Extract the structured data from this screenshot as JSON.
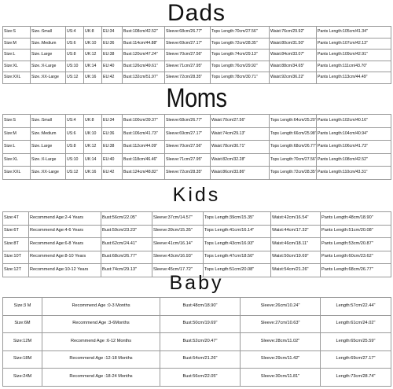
{
  "dads": {
    "title": "Dads",
    "rows": [
      [
        "Size:S",
        "Size.:Small",
        "US:4",
        "UK:8",
        "EU:34",
        "Bust:108cm/42.52\"",
        "Sleeve:68cm/26.77\"",
        "Tops Length:70cm/27.56\"",
        "Waist:76cm/29.92\"",
        "Pants Length:105cm/41.34\""
      ],
      [
        "Size:M",
        "Size.:Medium",
        "US:6",
        "UK:10",
        "EU:36",
        "Bust:114cm/44.88\"",
        "Sleeve:69cm/27.17\"",
        "Tops Length:72cm/28.35\"",
        "Waist:80cm/31.50\"",
        "Pants Length:107cm/42.13\""
      ],
      [
        "Size:L",
        "Size.:Large",
        "US:8",
        "UK:12",
        "EU:38",
        "Bust:120cm/47.24\"",
        "Sleeve:70cm/27.56\"",
        "Tops Length:74cm/29.13\"",
        "Waist:84cm/33.07\"",
        "Pants Length:109cm/42.91\""
      ],
      [
        "Size:XL",
        "Size.:X-Large",
        "US:10",
        "UK:14",
        "EU:40",
        "Bust:126cm/49.61\"",
        "Sleeve:71cm/27.95\"",
        "Tops Length:76cm/29.92\"",
        "Waist:88cm/34.65\"",
        "Pants Length:111cm/43.70\""
      ],
      [
        "Size:XXL",
        "Size.:XX-Large",
        "US:12",
        "UK:16",
        "EU:42",
        "Bust:132cm/51.97\"",
        "Sleeve:72cm/28.35\"",
        "Tops Length:78cm/30.71\"",
        "Waist:92cm/36.22\"",
        "Pants Length:113cm/44.49\""
      ]
    ]
  },
  "moms": {
    "title": "Moms",
    "rows": [
      [
        "Size:S",
        "Size.:Small",
        "US:4",
        "UK:8",
        "EU:34",
        "Bust:100cm/39.37\"",
        "Sleeve:68cm/26.77\"",
        "Waist:70cm/27.56\"",
        "Tops Length:64cm/25.20\"",
        "Pants Length:102cm/40.16\""
      ],
      [
        "Size:M",
        "Size.:Medium",
        "US:6",
        "UK:10",
        "EU:36",
        "Bust:106cm/41.73\"",
        "Sleeve:69cm/27.17\"",
        "Waist:74cm/29.13\"",
        "Tops Length:66cm/25.98\"",
        "Pants Length:104cm/40.94\""
      ],
      [
        "Size:L",
        "Size.:Large",
        "US:8",
        "UK:12",
        "EU:38",
        "Bust:112cm/44.09\"",
        "Sleeve:70cm/27.56\"",
        "Waist:78cm/30.71\"",
        "Tops Length:68cm/26.77\"",
        "Pants Length:106cm/41.73\""
      ],
      [
        "Size:XL",
        "Size.:X-Large",
        "US:10",
        "UK:14",
        "EU:40",
        "Bust:118cm/46.46\"",
        "Sleeve:71cm/27.95\"",
        "Waist:82cm/32.28\"",
        "Tops Length:70cm/27.56\"",
        "Pants Length:108cm/42.52\""
      ],
      [
        "Size:XXL",
        "Size.:XX-Large",
        "US:12",
        "UK:16",
        "EU:42",
        "Bust:124cm/48.82\"",
        "Sleeve:72cm/28.35\"",
        "Waist:86cm/33.86\"",
        "Tops Length:72cm/28.35\"",
        "Pants Length:110cm/43.31\""
      ]
    ]
  },
  "kids": {
    "title": "Kids",
    "rows": [
      [
        "Size:4T",
        "Recommend Age:2-4 Years",
        "Bust:56cm/22.05\"",
        "Sleeve:37cm/14.57\"",
        "Tops Length:39cm/15.35\"",
        "Waist:42cm/16.54\"",
        "Pants Length:48cm/18.90\""
      ],
      [
        "Size:6T",
        "Recommend Age:4-6 Years",
        "Bust:59cm/23.23\"",
        "Sleeve:39cm/15.35\"",
        "Tops Length:41cm/16.14\"",
        "Waist:44cm/17.32\"",
        "Pants Length:51cm/20.08\""
      ],
      [
        "Size:8T",
        "Recommend Age:6-8 Years",
        "Bust:62cm/24.41\"",
        "Sleeve:41cm/16.14\"",
        "Tops Length:43cm/16.93\"",
        "Waist:46cm/18.11\"",
        "Pants Length:53cm/20.87\""
      ],
      [
        "Size:10T",
        "Recommend Age:8-10 Years",
        "Bust:68cm/26.77\"",
        "Sleeve:43cm/16.93\"",
        "Tops Length:47cm/18.50\"",
        "Waist:50cm/19.69\"",
        "Pants Length:60cm/23.62\""
      ],
      [
        "Size:12T",
        "Recommend Age:10-12 Years",
        "Bust:74cm/29.13\"",
        "Sleeve:45cm/17.72\"",
        "Tops Length:51cm/20.08\"",
        "Waist:54cm/21.26\"",
        "Pants Length:68cm/26.77\""
      ]
    ]
  },
  "baby": {
    "title": "Baby",
    "rows": [
      [
        "Size:3 M",
        "Recommend Age :0-3 Months",
        "Bust:48cm/18.90\"",
        "Sleeve:26cm/10.24\"",
        "Length:57cm/22.44\""
      ],
      [
        "Size:6M",
        "Recommend Age :3-6Months",
        "Bust:50cm/19.69\"",
        "Sleeve:27cm/10.63\"",
        "Length:61cm/24.02\""
      ],
      [
        "Size:12M",
        "Recommend Age :6-12 Months",
        "Bust:52cm/20.47\"",
        "Sleeve:28cm/11.02\"",
        "Length:65cm/25.59\""
      ],
      [
        "Size:18M",
        "Recommend Age :12-18 Months",
        "Bust:54cm/21.26\"",
        "Sleeve:29cm/11.42\"",
        "Length:69cm/27.17\""
      ],
      [
        "Size:24M",
        "Recommend Age :18-24 Months",
        "Bust:56cm/22.05\"",
        "Sleeve:30cm/11.81\"",
        "Length:73cm/28.74\""
      ]
    ]
  }
}
